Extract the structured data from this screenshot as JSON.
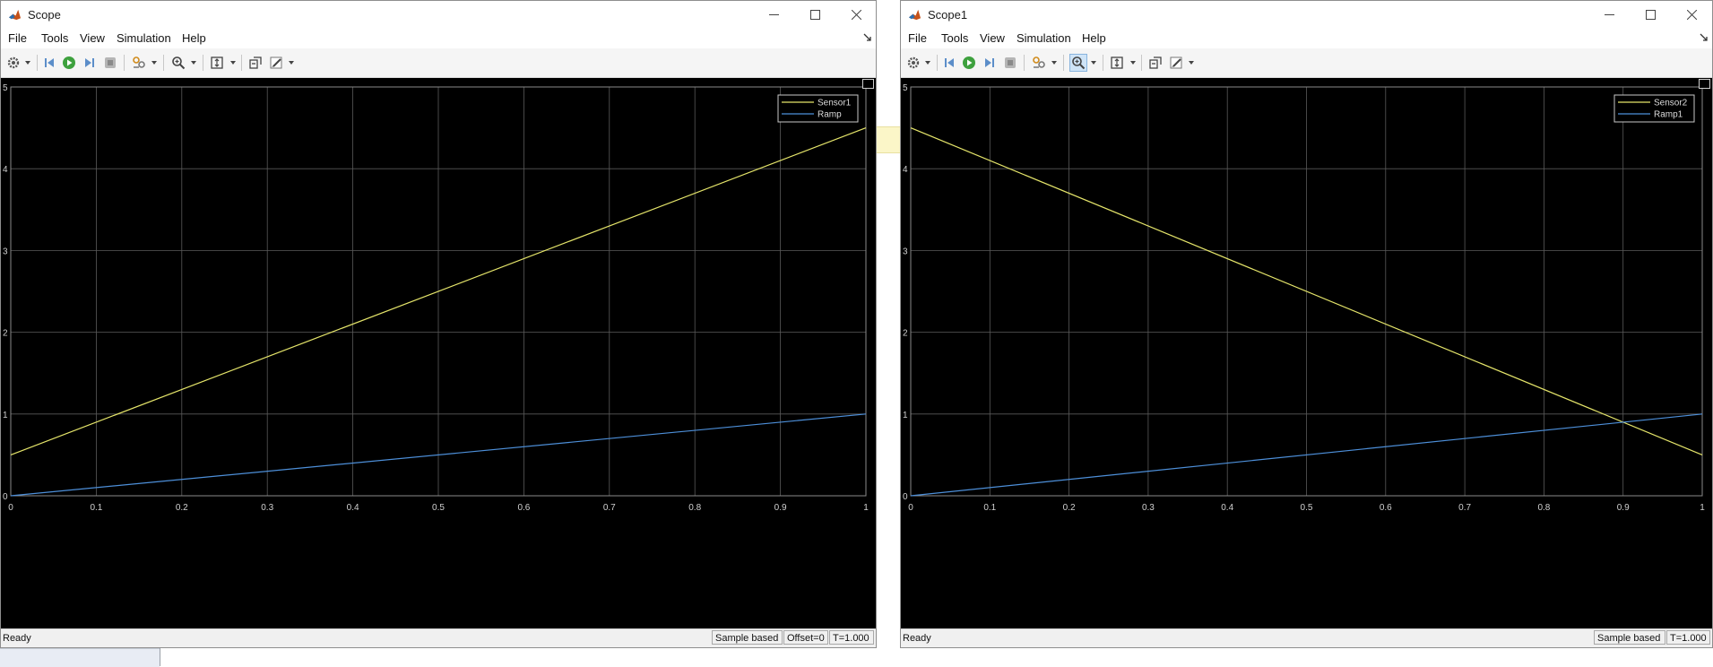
{
  "windows": [
    {
      "title": "Scope",
      "menus": [
        "File",
        "Tools",
        "View",
        "Simulation",
        "Help"
      ],
      "toolbar_active": null,
      "chart_data": {
        "type": "line",
        "xlim": [
          0,
          1
        ],
        "ylim": [
          0,
          5
        ],
        "xticks": [
          "0",
          "0.1",
          "0.2",
          "0.3",
          "0.4",
          "0.5",
          "0.6",
          "0.7",
          "0.8",
          "0.9",
          "1"
        ],
        "yticks": [
          "0",
          "1",
          "2",
          "3",
          "4",
          "5"
        ],
        "grid": true,
        "legend": "top-right",
        "series": [
          {
            "name": "Sensor1",
            "color": "#e5e56a",
            "x": [
              0,
              1
            ],
            "y": [
              0.5,
              4.5
            ]
          },
          {
            "name": "Ramp",
            "color": "#4d8fd9",
            "x": [
              0,
              1
            ],
            "y": [
              0,
              1
            ]
          }
        ]
      },
      "status": {
        "ready": "Ready",
        "cells": [
          "Sample based",
          "Offset=0",
          "T=1.000"
        ]
      }
    },
    {
      "title": "Scope1",
      "menus": [
        "File",
        "Tools",
        "View",
        "Simulation",
        "Help"
      ],
      "toolbar_active": "zoom",
      "chart_data": {
        "type": "line",
        "xlim": [
          0,
          1
        ],
        "ylim": [
          0,
          5
        ],
        "xticks": [
          "0",
          "0.1",
          "0.2",
          "0.3",
          "0.4",
          "0.5",
          "0.6",
          "0.7",
          "0.8",
          "0.9",
          "1"
        ],
        "yticks": [
          "0",
          "1",
          "2",
          "3",
          "4",
          "5"
        ],
        "grid": true,
        "legend": "top-right",
        "series": [
          {
            "name": "Sensor2",
            "color": "#e5e56a",
            "x": [
              0,
              1
            ],
            "y": [
              4.5,
              0.5
            ]
          },
          {
            "name": "Ramp1",
            "color": "#4d8fd9",
            "x": [
              0,
              1
            ],
            "y": [
              0,
              1
            ]
          }
        ]
      },
      "status": {
        "ready": "Ready",
        "cells": [
          "Sample based",
          "T=1.000"
        ]
      }
    }
  ],
  "colors": {
    "plot_background": "#000000",
    "grid": "#5a5a5a",
    "tick_label": "#d0d0d0"
  },
  "icons": [
    "matlab-logo-icon",
    "minimize-icon",
    "maximize-icon",
    "close-icon",
    "settings-icon",
    "step-back-icon",
    "run-icon",
    "step-forward-icon",
    "stop-icon",
    "signal-select-icon",
    "zoom-icon",
    "scale-axes-icon",
    "highlight-icon",
    "style-icon"
  ]
}
